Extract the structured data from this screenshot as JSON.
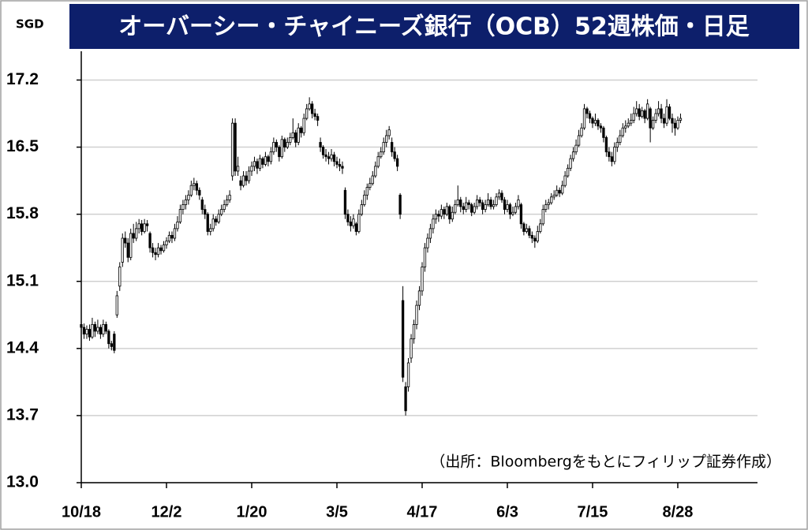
{
  "chart_data": {
    "type": "candlestick",
    "title": "オーバーシー・チャイニーズ銀行（OCB）52週株価・日足",
    "y_unit": "SGD",
    "note": "（出所：Bloombergをもとにフィリップ証券作成）",
    "up_color": "#ffffff",
    "down_color": "#000000",
    "grid": true,
    "ylim": [
      13.0,
      17.5
    ],
    "yticks": [
      {
        "value": 13.0,
        "label": "13.0"
      },
      13.7,
      14.4,
      15.1,
      15.8,
      16.5,
      17.2
    ],
    "xlim": [
      0,
      246
    ],
    "xticks": [
      {
        "value": 0,
        "label": "10/18"
      },
      {
        "value": 31,
        "label": "12/2"
      },
      {
        "value": 62,
        "label": "1/20"
      },
      {
        "value": 93,
        "label": "3/5"
      },
      {
        "value": 124,
        "label": "4/17"
      },
      {
        "value": 155,
        "label": "6/3"
      },
      {
        "value": 186,
        "label": "7/15"
      },
      {
        "value": 217,
        "label": "8/28"
      }
    ],
    "candles": [
      [
        14.65,
        14.72,
        14.55,
        14.62
      ],
      [
        14.62,
        14.66,
        14.5,
        14.55
      ],
      [
        14.55,
        14.64,
        14.5,
        14.6
      ],
      [
        14.6,
        14.65,
        14.48,
        14.52
      ],
      [
        14.52,
        14.72,
        14.5,
        14.65
      ],
      [
        14.65,
        14.68,
        14.52,
        14.58
      ],
      [
        14.58,
        14.7,
        14.55,
        14.62
      ],
      [
        14.62,
        14.65,
        14.5,
        14.55
      ],
      [
        14.55,
        14.7,
        14.52,
        14.65
      ],
      [
        14.65,
        14.68,
        14.55,
        14.58
      ],
      [
        14.58,
        14.6,
        14.4,
        14.45
      ],
      [
        14.45,
        14.48,
        14.38,
        14.42
      ],
      [
        14.55,
        14.58,
        14.35,
        14.38
      ],
      [
        14.75,
        15.0,
        14.72,
        14.95
      ],
      [
        15.05,
        15.3,
        15.0,
        15.25
      ],
      [
        15.3,
        15.6,
        15.25,
        15.55
      ],
      [
        15.55,
        15.62,
        15.45,
        15.5
      ],
      [
        15.5,
        15.55,
        15.3,
        15.35
      ],
      [
        15.35,
        15.65,
        15.32,
        15.6
      ],
      [
        15.6,
        15.7,
        15.5,
        15.55
      ],
      [
        15.55,
        15.72,
        15.52,
        15.65
      ],
      [
        15.65,
        15.75,
        15.6,
        15.7
      ],
      [
        15.7,
        15.74,
        15.58,
        15.62
      ],
      [
        15.62,
        15.75,
        15.6,
        15.7
      ],
      [
        15.7,
        15.74,
        15.62,
        15.68
      ],
      [
        15.6,
        15.62,
        15.4,
        15.45
      ],
      [
        15.45,
        15.5,
        15.35,
        15.4
      ],
      [
        15.4,
        15.45,
        15.32,
        15.38
      ],
      [
        15.38,
        15.5,
        15.35,
        15.45
      ],
      [
        15.45,
        15.48,
        15.38,
        15.42
      ],
      [
        15.42,
        15.52,
        15.4,
        15.48
      ],
      [
        15.48,
        15.56,
        15.44,
        15.52
      ],
      [
        15.52,
        15.62,
        15.5,
        15.58
      ],
      [
        15.58,
        15.62,
        15.5,
        15.55
      ],
      [
        15.55,
        15.7,
        15.52,
        15.65
      ],
      [
        15.65,
        15.78,
        15.62,
        15.72
      ],
      [
        15.72,
        15.9,
        15.7,
        15.85
      ],
      [
        15.85,
        15.95,
        15.8,
        15.9
      ],
      [
        15.9,
        16.0,
        15.85,
        15.95
      ],
      [
        15.95,
        16.05,
        15.9,
        16.0
      ],
      [
        16.0,
        16.15,
        15.98,
        16.1
      ],
      [
        16.1,
        16.18,
        16.05,
        16.12
      ],
      [
        16.12,
        16.15,
        16.0,
        16.05
      ],
      [
        16.05,
        16.08,
        15.95,
        16.0
      ],
      [
        15.95,
        15.98,
        15.8,
        15.85
      ],
      [
        15.85,
        15.9,
        15.75,
        15.8
      ],
      [
        15.8,
        15.82,
        15.58,
        15.62
      ],
      [
        15.62,
        15.7,
        15.58,
        15.65
      ],
      [
        15.65,
        15.8,
        15.62,
        15.75
      ],
      [
        15.75,
        15.78,
        15.68,
        15.72
      ],
      [
        15.72,
        15.85,
        15.7,
        15.8
      ],
      [
        15.8,
        15.9,
        15.78,
        15.85
      ],
      [
        15.85,
        15.95,
        15.82,
        15.9
      ],
      [
        15.9,
        16.0,
        15.88,
        15.95
      ],
      [
        15.95,
        16.05,
        15.92,
        16.0
      ],
      [
        16.2,
        16.8,
        16.15,
        16.75
      ],
      [
        16.75,
        16.8,
        16.2,
        16.25
      ],
      [
        16.25,
        16.4,
        16.2,
        16.3
      ],
      [
        16.15,
        16.2,
        16.05,
        16.1
      ],
      [
        16.1,
        16.25,
        16.08,
        16.2
      ],
      [
        16.2,
        16.25,
        16.1,
        16.15
      ],
      [
        16.15,
        16.3,
        16.12,
        16.25
      ],
      [
        16.25,
        16.35,
        16.2,
        16.3
      ],
      [
        16.3,
        16.4,
        16.25,
        16.35
      ],
      [
        16.35,
        16.38,
        16.22,
        16.28
      ],
      [
        16.28,
        16.42,
        16.25,
        16.38
      ],
      [
        16.38,
        16.4,
        16.28,
        16.32
      ],
      [
        16.32,
        16.45,
        16.3,
        16.4
      ],
      [
        16.4,
        16.42,
        16.3,
        16.35
      ],
      [
        16.35,
        16.5,
        16.32,
        16.45
      ],
      [
        16.45,
        16.6,
        16.42,
        16.55
      ],
      [
        16.55,
        16.58,
        16.45,
        16.5
      ],
      [
        16.5,
        16.52,
        16.35,
        16.4
      ],
      [
        16.4,
        16.62,
        16.38,
        16.58
      ],
      [
        16.58,
        16.6,
        16.45,
        16.5
      ],
      [
        16.5,
        16.6,
        16.48,
        16.55
      ],
      [
        16.55,
        16.65,
        16.52,
        16.6
      ],
      [
        16.6,
        16.8,
        16.58,
        16.65
      ],
      [
        16.65,
        16.68,
        16.5,
        16.55
      ],
      [
        16.55,
        16.75,
        16.52,
        16.7
      ],
      [
        16.7,
        16.72,
        16.6,
        16.65
      ],
      [
        16.65,
        16.85,
        16.62,
        16.8
      ],
      [
        16.8,
        16.95,
        16.78,
        16.9
      ],
      [
        16.9,
        17.02,
        16.88,
        16.95
      ],
      [
        16.95,
        16.98,
        16.8,
        16.85
      ],
      [
        16.85,
        16.9,
        16.78,
        16.82
      ],
      [
        16.82,
        16.85,
        16.72,
        16.78
      ],
      [
        16.55,
        16.6,
        16.45,
        16.5
      ],
      [
        16.5,
        16.52,
        16.38,
        16.42
      ],
      [
        16.42,
        16.48,
        16.35,
        16.4
      ],
      [
        16.4,
        16.45,
        16.32,
        16.38
      ],
      [
        16.38,
        16.48,
        16.35,
        16.42
      ],
      [
        16.42,
        16.45,
        16.3,
        16.35
      ],
      [
        16.35,
        16.4,
        16.28,
        16.32
      ],
      [
        16.32,
        16.38,
        16.25,
        16.3
      ],
      [
        16.3,
        16.35,
        16.22,
        16.28
      ],
      [
        16.05,
        16.08,
        15.75,
        15.8
      ],
      [
        15.8,
        15.85,
        15.68,
        15.72
      ],
      [
        15.72,
        15.78,
        15.62,
        15.68
      ],
      [
        15.68,
        15.8,
        15.65,
        15.75
      ],
      [
        15.7,
        15.72,
        15.58,
        15.62
      ],
      [
        15.62,
        15.85,
        15.6,
        15.8
      ],
      [
        15.8,
        15.95,
        15.78,
        15.9
      ],
      [
        15.9,
        16.05,
        15.88,
        16.0
      ],
      [
        16.0,
        16.12,
        15.95,
        16.08
      ],
      [
        16.08,
        16.18,
        16.05,
        16.12
      ],
      [
        16.12,
        16.25,
        16.1,
        16.2
      ],
      [
        16.2,
        16.35,
        16.18,
        16.3
      ],
      [
        16.3,
        16.45,
        16.28,
        16.4
      ],
      [
        16.4,
        16.5,
        16.38,
        16.45
      ],
      [
        16.45,
        16.6,
        16.42,
        16.55
      ],
      [
        16.55,
        16.68,
        16.5,
        16.62
      ],
      [
        16.62,
        16.72,
        16.58,
        16.68
      ],
      [
        16.55,
        16.6,
        16.4,
        16.45
      ],
      [
        16.45,
        16.5,
        16.35,
        16.38
      ],
      [
        16.38,
        16.42,
        16.25,
        16.3
      ],
      [
        16.0,
        16.02,
        15.75,
        15.8
      ],
      [
        14.9,
        15.05,
        14.05,
        14.1
      ],
      [
        14.0,
        14.05,
        13.7,
        13.75
      ],
      [
        14.0,
        14.3,
        13.95,
        14.25
      ],
      [
        14.3,
        14.55,
        14.25,
        14.5
      ],
      [
        14.5,
        14.7,
        14.45,
        14.65
      ],
      [
        14.65,
        14.9,
        14.6,
        14.85
      ],
      [
        14.85,
        15.05,
        14.8,
        15.0
      ],
      [
        15.0,
        15.3,
        14.95,
        15.25
      ],
      [
        15.25,
        15.5,
        15.2,
        15.45
      ],
      [
        15.45,
        15.6,
        15.4,
        15.55
      ],
      [
        15.55,
        15.7,
        15.5,
        15.65
      ],
      [
        15.65,
        15.8,
        15.6,
        15.75
      ],
      [
        15.75,
        15.85,
        15.7,
        15.8
      ],
      [
        15.8,
        15.84,
        15.72,
        15.78
      ],
      [
        15.78,
        15.9,
        15.75,
        15.85
      ],
      [
        15.85,
        15.88,
        15.75,
        15.8
      ],
      [
        15.8,
        15.92,
        15.78,
        15.88
      ],
      [
        15.88,
        15.9,
        15.7,
        15.75
      ],
      [
        15.75,
        15.88,
        15.72,
        15.82
      ],
      [
        15.82,
        15.95,
        15.8,
        15.9
      ],
      [
        15.9,
        16.1,
        15.88,
        15.95
      ],
      [
        15.95,
        15.98,
        15.82,
        15.88
      ],
      [
        15.88,
        15.92,
        15.8,
        15.85
      ],
      [
        15.85,
        15.98,
        15.82,
        15.92
      ],
      [
        15.92,
        15.95,
        15.85,
        15.9
      ],
      [
        15.9,
        15.92,
        15.78,
        15.82
      ],
      [
        15.82,
        15.92,
        15.8,
        15.88
      ],
      [
        15.88,
        16.0,
        15.85,
        15.95
      ],
      [
        15.95,
        15.98,
        15.88,
        15.92
      ],
      [
        15.92,
        15.95,
        15.8,
        15.85
      ],
      [
        15.85,
        15.95,
        15.82,
        15.9
      ],
      [
        15.9,
        16.02,
        15.88,
        15.95
      ],
      [
        15.95,
        15.98,
        15.85,
        15.88
      ],
      [
        15.88,
        15.95,
        15.85,
        15.9
      ],
      [
        15.9,
        16.02,
        15.88,
        15.98
      ],
      [
        15.98,
        16.06,
        15.95,
        16.02
      ],
      [
        16.02,
        16.05,
        15.92,
        15.95
      ],
      [
        15.95,
        15.98,
        15.8,
        15.85
      ],
      [
        15.85,
        15.95,
        15.82,
        15.9
      ],
      [
        15.9,
        15.92,
        15.75,
        15.8
      ],
      [
        15.8,
        15.88,
        15.78,
        15.82
      ],
      [
        15.82,
        15.92,
        15.8,
        15.88
      ],
      [
        15.88,
        16.0,
        15.85,
        15.95
      ],
      [
        15.9,
        15.92,
        15.65,
        15.7
      ],
      [
        15.7,
        15.72,
        15.58,
        15.62
      ],
      [
        15.62,
        15.7,
        15.6,
        15.65
      ],
      [
        15.65,
        15.68,
        15.55,
        15.58
      ],
      [
        15.58,
        15.62,
        15.5,
        15.55
      ],
      [
        15.55,
        15.58,
        15.45,
        15.52
      ],
      [
        15.52,
        15.68,
        15.5,
        15.62
      ],
      [
        15.62,
        15.75,
        15.6,
        15.7
      ],
      [
        15.7,
        15.9,
        15.68,
        15.85
      ],
      [
        15.85,
        15.95,
        15.82,
        15.9
      ],
      [
        15.9,
        15.96,
        15.85,
        15.92
      ],
      [
        15.92,
        16.02,
        15.9,
        15.98
      ],
      [
        15.98,
        16.05,
        15.95,
        16.0
      ],
      [
        16.0,
        16.1,
        15.98,
        16.05
      ],
      [
        16.05,
        16.08,
        15.98,
        16.02
      ],
      [
        16.02,
        16.15,
        16.0,
        16.1
      ],
      [
        16.1,
        16.25,
        16.08,
        16.2
      ],
      [
        16.2,
        16.32,
        16.18,
        16.28
      ],
      [
        16.28,
        16.42,
        16.25,
        16.38
      ],
      [
        16.38,
        16.5,
        16.35,
        16.45
      ],
      [
        16.45,
        16.58,
        16.42,
        16.52
      ],
      [
        16.52,
        16.68,
        16.5,
        16.62
      ],
      [
        16.62,
        16.75,
        16.6,
        16.7
      ],
      [
        16.7,
        16.95,
        16.68,
        16.9
      ],
      [
        16.9,
        16.92,
        16.8,
        16.85
      ],
      [
        16.85,
        16.88,
        16.75,
        16.8
      ],
      [
        16.8,
        16.82,
        16.7,
        16.75
      ],
      [
        16.75,
        16.85,
        16.72,
        16.78
      ],
      [
        16.78,
        16.8,
        16.68,
        16.72
      ],
      [
        16.72,
        16.75,
        16.65,
        16.7
      ],
      [
        16.7,
        16.72,
        16.55,
        16.6
      ],
      [
        16.6,
        16.62,
        16.4,
        16.45
      ],
      [
        16.45,
        16.5,
        16.35,
        16.4
      ],
      [
        16.4,
        16.45,
        16.3,
        16.35
      ],
      [
        16.35,
        16.55,
        16.32,
        16.5
      ],
      [
        16.5,
        16.6,
        16.45,
        16.55
      ],
      [
        16.55,
        16.68,
        16.52,
        16.62
      ],
      [
        16.62,
        16.75,
        16.6,
        16.7
      ],
      [
        16.7,
        16.78,
        16.65,
        16.72
      ],
      [
        16.72,
        16.8,
        16.7,
        16.75
      ],
      [
        16.75,
        16.85,
        16.72,
        16.78
      ],
      [
        16.78,
        16.92,
        16.75,
        16.85
      ],
      [
        16.85,
        16.98,
        16.82,
        16.9
      ],
      [
        16.9,
        16.95,
        16.78,
        16.82
      ],
      [
        16.82,
        16.92,
        16.8,
        16.88
      ],
      [
        16.88,
        16.9,
        16.75,
        16.8
      ],
      [
        16.8,
        17.0,
        16.78,
        16.95
      ],
      [
        16.9,
        16.92,
        16.55,
        16.7
      ],
      [
        16.7,
        16.82,
        16.68,
        16.78
      ],
      [
        16.78,
        16.9,
        16.75,
        16.85
      ],
      [
        16.85,
        16.98,
        16.82,
        16.9
      ],
      [
        16.9,
        16.95,
        16.75,
        16.8
      ],
      [
        16.8,
        16.85,
        16.7,
        16.75
      ],
      [
        16.75,
        17.0,
        16.72,
        16.92
      ],
      [
        16.92,
        16.95,
        16.78,
        16.8
      ],
      [
        16.8,
        16.85,
        16.65,
        16.75
      ],
      [
        16.75,
        16.8,
        16.62,
        16.7
      ],
      [
        16.7,
        16.82,
        16.68,
        16.78
      ],
      [
        16.78,
        16.85,
        16.75,
        16.8
      ]
    ]
  }
}
